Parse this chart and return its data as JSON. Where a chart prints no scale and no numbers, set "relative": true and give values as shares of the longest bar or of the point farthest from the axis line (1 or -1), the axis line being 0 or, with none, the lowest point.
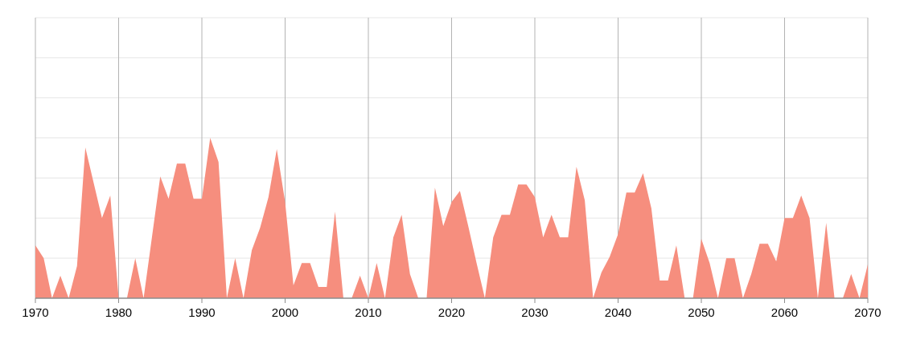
{
  "chart_data": {
    "type": "area",
    "relative": true,
    "color": "#f68e7e",
    "grid": true,
    "xlim": [
      1970,
      2070
    ],
    "xticks": [
      1970,
      1980,
      1990,
      2000,
      2010,
      2020,
      2030,
      2040,
      2050,
      2060,
      2070
    ],
    "x": [
      1970,
      1971,
      1972,
      1973,
      1974,
      1975,
      1976,
      1977,
      1978,
      1979,
      1980,
      1981,
      1982,
      1983,
      1984,
      1985,
      1986,
      1987,
      1988,
      1989,
      1990,
      1991,
      1992,
      1993,
      1994,
      1995,
      1996,
      1997,
      1998,
      1999,
      2000,
      2001,
      2002,
      2003,
      2004,
      2005,
      2006,
      2007,
      2008,
      2009,
      2010,
      2011,
      2012,
      2013,
      2014,
      2015,
      2016,
      2017,
      2018,
      2019,
      2020,
      2021,
      2022,
      2023,
      2024,
      2025,
      2026,
      2027,
      2028,
      2029,
      2030,
      2031,
      2032,
      2033,
      2034,
      2035,
      2036,
      2037,
      2038,
      2039,
      2040,
      2041,
      2042,
      2043,
      2044,
      2045,
      2046,
      2047,
      2048,
      2049,
      2050,
      2051,
      2052,
      2053,
      2054,
      2055,
      2056,
      2057,
      2058,
      2059,
      2060,
      2061,
      2062,
      2063,
      2064,
      2065,
      2066,
      2067,
      2068,
      2069,
      2070
    ],
    "values": [
      0.33,
      0.25,
      0,
      0.14,
      0,
      0.2,
      0.94,
      0.72,
      0.5,
      0.64,
      0,
      0,
      0.25,
      0,
      0.38,
      0.76,
      0.62,
      0.84,
      0.84,
      0.62,
      0.62,
      1,
      0.85,
      0,
      0.25,
      0,
      0.3,
      0.44,
      0.63,
      0.93,
      0.6,
      0.08,
      0.22,
      0.22,
      0.07,
      0.07,
      0.54,
      0,
      0,
      0.14,
      0,
      0.22,
      0,
      0.38,
      0.52,
      0.15,
      0,
      0,
      0.69,
      0.45,
      0.6,
      0.67,
      0.45,
      0.22,
      0,
      0.38,
      0.52,
      0.52,
      0.71,
      0.71,
      0.63,
      0.38,
      0.52,
      0.38,
      0.38,
      0.82,
      0.61,
      0,
      0.16,
      0.26,
      0.4,
      0.66,
      0.66,
      0.78,
      0.56,
      0.11,
      0.11,
      0.33,
      0,
      0,
      0.37,
      0.22,
      0,
      0.25,
      0.25,
      0,
      0.15,
      0.34,
      0.34,
      0.23,
      0.5,
      0.5,
      0.64,
      0.5,
      0,
      0.47,
      0,
      0,
      0.15,
      0,
      0.21
    ]
  }
}
